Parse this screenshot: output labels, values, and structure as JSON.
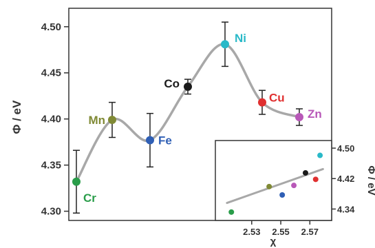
{
  "chart_data": [
    {
      "type": "scatter",
      "ylabel": "Φ / eV",
      "ylim": [
        4.29,
        4.52
      ],
      "yticks": [
        "4.30",
        "4.35",
        "4.40",
        "4.45",
        "4.50"
      ],
      "grid": false,
      "smooth_curve": true,
      "points": [
        {
          "label": "Cr",
          "y": 4.332,
          "err": 0.034,
          "color": "#2a9d4a"
        },
        {
          "label": "Mn",
          "y": 4.399,
          "err": 0.019,
          "color": "#808a35"
        },
        {
          "label": "Fe",
          "y": 4.377,
          "err": 0.029,
          "color": "#2f5fb5"
        },
        {
          "label": "Co",
          "y": 4.435,
          "err": 0.008,
          "color": "#1a1a1a"
        },
        {
          "label": "Ni",
          "y": 4.481,
          "err": 0.024,
          "color": "#29b9c8"
        },
        {
          "label": "Cu",
          "y": 4.418,
          "err": 0.013,
          "color": "#e03030"
        },
        {
          "label": "Zn",
          "y": 4.402,
          "err": 0.009,
          "color": "#b858b8"
        }
      ]
    },
    {
      "type": "scatter",
      "inset": true,
      "xlabel": "χ",
      "ylabel": "Φ / eV",
      "xlim": [
        2.505,
        2.585
      ],
      "ylim": [
        4.31,
        4.52
      ],
      "xticks": [
        "2.53",
        "2.55",
        "2.57"
      ],
      "yticks": [
        "4.34",
        "4.42",
        "4.50"
      ],
      "fit_line": {
        "x": [
          2.513,
          2.579
        ],
        "y": [
          4.356,
          4.445
        ]
      },
      "points": [
        {
          "x": 2.516,
          "y": 4.332,
          "color": "#2a9d4a"
        },
        {
          "x": 2.542,
          "y": 4.399,
          "color": "#808a35"
        },
        {
          "x": 2.551,
          "y": 4.377,
          "color": "#2f5fb5"
        },
        {
          "x": 2.567,
          "y": 4.435,
          "color": "#1a1a1a"
        },
        {
          "x": 2.577,
          "y": 4.481,
          "color": "#29b9c8"
        },
        {
          "x": 2.574,
          "y": 4.418,
          "color": "#e03030"
        },
        {
          "x": 2.559,
          "y": 4.402,
          "color": "#b858b8"
        }
      ]
    }
  ]
}
